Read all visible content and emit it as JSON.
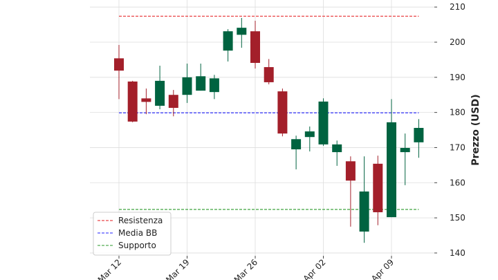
{
  "chart_data": {
    "type": "candlestick",
    "y_label": "Prezzo (USD)",
    "categories": [
      "Mar 12",
      null,
      null,
      null,
      null,
      "Mar 19",
      null,
      null,
      null,
      null,
      "Mar 26",
      null,
      null,
      null,
      null,
      "Apr 02",
      null,
      null,
      null,
      null,
      "Apr 09",
      null,
      null
    ],
    "open": [
      195.4,
      188.8,
      184.0,
      181.9,
      185.0,
      185.0,
      186.2,
      185.8,
      197.6,
      202.1,
      203.1,
      192.9,
      186.0,
      169.5,
      173.0,
      170.9,
      168.7,
      166.1,
      146.1,
      165.4,
      150.2,
      168.7,
      171.5
    ],
    "high": [
      199.2,
      189.0,
      186.8,
      193.3,
      186.4,
      193.9,
      193.9,
      190.7,
      203.7,
      206.9,
      206.1,
      195.2,
      186.8,
      173.4,
      176.0,
      184.0,
      172.0,
      167.5,
      167.5,
      167.7,
      183.8,
      174.0,
      178.1
    ],
    "low": [
      183.8,
      177.2,
      179.5,
      180.9,
      178.9,
      182.7,
      186.2,
      183.8,
      194.5,
      198.4,
      192.5,
      188.0,
      173.2,
      163.8,
      168.9,
      170.5,
      164.8,
      147.5,
      142.9,
      147.9,
      150.2,
      159.3,
      167.1
    ],
    "close": [
      191.9,
      177.4,
      183.0,
      189.0,
      181.3,
      190.0,
      190.3,
      189.7,
      203.1,
      204.1,
      194.1,
      188.6,
      174.0,
      172.4,
      174.6,
      183.1,
      170.9,
      160.6,
      157.5,
      151.6,
      177.2,
      169.9,
      175.6
    ],
    "up_color": "#006340",
    "down_color": "#a31f2a",
    "lines": [
      {
        "name": "Resistenza",
        "value": 207.4,
        "color": "#e41a1c"
      },
      {
        "name": "Media BB",
        "value": 179.9,
        "color": "#1f1fff"
      },
      {
        "name": "Supporto",
        "value": 152.4,
        "color": "#2a9a2a"
      }
    ],
    "ylim": [
      139.2,
      212
    ],
    "yticks": [
      140,
      150,
      160,
      170,
      180,
      190,
      200,
      210
    ],
    "grid": true,
    "legend": "lower left"
  }
}
